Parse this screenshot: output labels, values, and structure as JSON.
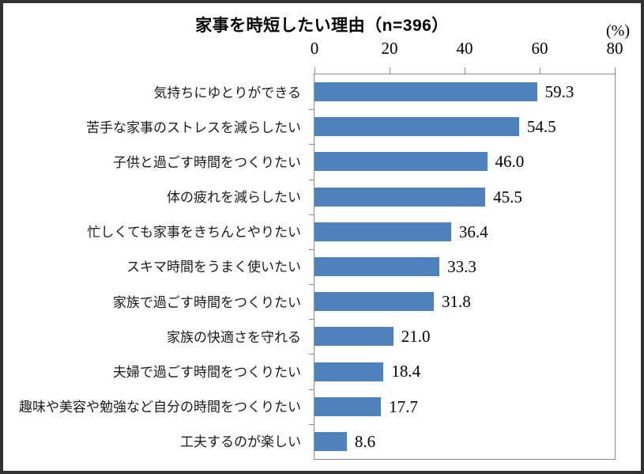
{
  "header": {
    "title": "家事を時短したい理由（n=396）",
    "unit_label": "(%)"
  },
  "chart_data": {
    "type": "bar",
    "orientation": "horizontal",
    "title": "家事を時短したい理由（n=396）",
    "unit": "%",
    "categories": [
      "気持ちにゆとりができる",
      "苦手な家事のストレスを減らしたい",
      "子供と過ごす時間をつくりたい",
      "体の疲れを減らしたい",
      "忙しくても家事をきちんとやりたい",
      "スキマ時間をうまく使いたい",
      "家族で過ごす時間をつくりたい",
      "家族の快適さを守れる",
      "夫婦で過ごす時間をつくりたい",
      "趣味や美容や勉強など自分の時間をつくりたい",
      "工夫するのが楽しい"
    ],
    "values": [
      59.3,
      54.5,
      46.0,
      45.5,
      36.4,
      33.3,
      31.8,
      21.0,
      18.4,
      17.7,
      8.6
    ],
    "value_labels": [
      "59.3",
      "54.5",
      "46.0",
      "45.5",
      "36.4",
      "33.3",
      "31.8",
      "21.0",
      "18.4",
      "17.7",
      "8.6"
    ],
    "xlim": [
      0,
      80
    ],
    "x_ticks": [
      0,
      20,
      40,
      60,
      80
    ],
    "grid": "off",
    "legend": "none",
    "bar_color": "#4F81BD",
    "axis_color": "#8C8C8C",
    "text_color": "#000000"
  }
}
